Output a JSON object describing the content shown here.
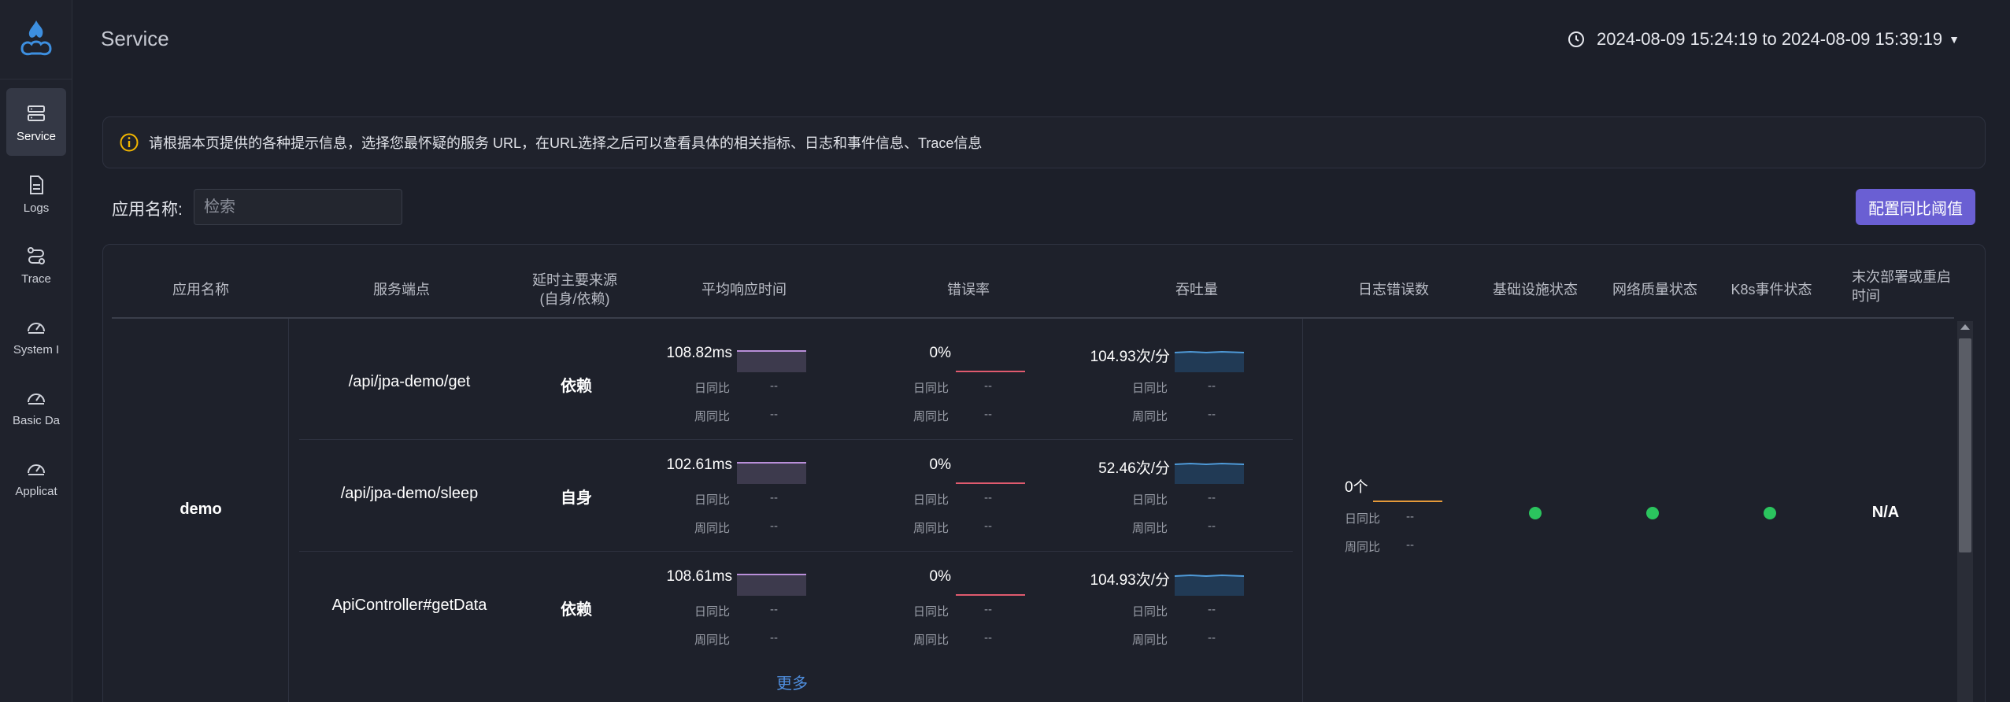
{
  "sidebar": {
    "items": [
      {
        "label": "Service",
        "icon": "server-icon"
      },
      {
        "label": "Logs",
        "icon": "document-icon"
      },
      {
        "label": "Trace",
        "icon": "route-icon"
      },
      {
        "label": "System I",
        "icon": "gauge-icon"
      },
      {
        "label": "Basic Da",
        "icon": "gauge-icon"
      },
      {
        "label": "Applicat",
        "icon": "gauge-icon"
      }
    ]
  },
  "header": {
    "title": "Service",
    "time_range": "2024-08-09 15:24:19 to 2024-08-09 15:39:19"
  },
  "alert": {
    "text": "请根据本页提供的各种提示信息，选择您最怀疑的服务 URL，在URL选择之后可以查看具体的相关指标、日志和事件信息、Trace信息"
  },
  "search": {
    "label": "应用名称:",
    "placeholder": "检索"
  },
  "config_button": "配置同比阈值",
  "table": {
    "headers": {
      "app_name": "应用名称",
      "endpoint": "服务端点",
      "latency_source_1": "延时主要来源",
      "latency_source_2": "(自身/依赖)",
      "avg_response": "平均响应时间",
      "error_rate": "错误率",
      "throughput": "吞吐量",
      "log_errors": "日志错误数",
      "infra_status": "基础设施状态",
      "network_status": "网络质量状态",
      "k8s_status": "K8s事件状态",
      "last_deploy_1": "末次部署或重启",
      "last_deploy_2": "时间"
    },
    "app": "demo",
    "cmp_day_label": "日同比",
    "cmp_week_label": "周同比",
    "rows": [
      {
        "endpoint": "/api/jpa-demo/get",
        "source": "依赖",
        "latency": "108.82ms",
        "latency_day": "--",
        "latency_week": "--",
        "error_rate": "0%",
        "error_day": "--",
        "error_week": "--",
        "throughput": "104.93次/分",
        "throughput_day": "--",
        "throughput_week": "--"
      },
      {
        "endpoint": "/api/jpa-demo/sleep",
        "source": "自身",
        "latency": "102.61ms",
        "latency_day": "--",
        "latency_week": "--",
        "error_rate": "0%",
        "error_day": "--",
        "error_week": "--",
        "throughput": "52.46次/分",
        "throughput_day": "--",
        "throughput_week": "--"
      },
      {
        "endpoint": "ApiController#getData",
        "source": "依赖",
        "latency": "108.61ms",
        "latency_day": "--",
        "latency_week": "--",
        "error_rate": "0%",
        "error_day": "--",
        "error_week": "--",
        "throughput": "104.93次/分",
        "throughput_day": "--",
        "throughput_week": "--"
      }
    ],
    "more_link": "更多",
    "log_errors": "0个",
    "log_errors_day": "--",
    "log_errors_week": "--",
    "last_deploy": "N/A"
  },
  "colors": {
    "latency_spark": "#b98fd9",
    "error_spark": "#e05a6e",
    "throughput_spark": "#4f9ad8",
    "log_spark": "#e59a3a",
    "status_ok": "#2bc45e",
    "accent_button": "#6a5fd3"
  }
}
